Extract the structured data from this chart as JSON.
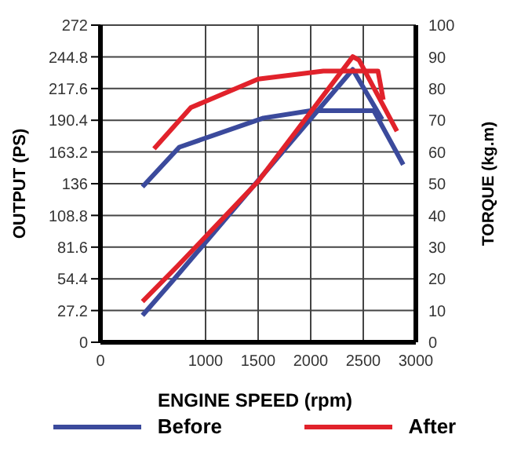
{
  "chart_data": {
    "type": "line",
    "xlabel": "ENGINE SPEED (rpm)",
    "ylabel": "OUTPUT (PS)",
    "y2label": "TORQUE (kg.m)",
    "xlim": [
      0,
      3000
    ],
    "xticks": [
      0,
      1000,
      1500,
      2000,
      2500,
      3000
    ],
    "ylim": [
      0,
      272
    ],
    "yticks": [
      0,
      27.2,
      54.4,
      81.6,
      108.8,
      136,
      163.2,
      190.4,
      217.6,
      244.8,
      272
    ],
    "y2lim": [
      0,
      100
    ],
    "y2ticks": [
      0,
      10,
      20,
      30,
      40,
      50,
      60,
      70,
      80,
      90,
      100
    ],
    "grid": true,
    "legend": "bottom",
    "marker": "none",
    "line_style": "solid",
    "series": [
      {
        "name": "Before",
        "color": "#3b4a9c",
        "axis": "y2",
        "x": [
          400,
          750,
          1550,
          2000,
          2600,
          2880
        ],
        "values": [
          49,
          61.5,
          70.7,
          73,
          73,
          56
        ]
      },
      {
        "color": "#3b4a9c",
        "x": [
          400,
          700,
          2400,
          2680
        ],
        "values": [
          23,
          54,
          234,
          191
        ]
      },
      {
        "name": "After",
        "color": "#e1222b",
        "axis": "y2",
        "x": [
          510,
          860,
          1500,
          2120,
          2640,
          2690
        ],
        "values": [
          61,
          74,
          83,
          85.5,
          85.5,
          76.5
        ]
      },
      {
        "color": "#e1222b",
        "x": [
          400,
          730,
          1500,
          2400,
          2460,
          2820
        ],
        "values": [
          35,
          65,
          138,
          245,
          242,
          181
        ]
      }
    ]
  }
}
